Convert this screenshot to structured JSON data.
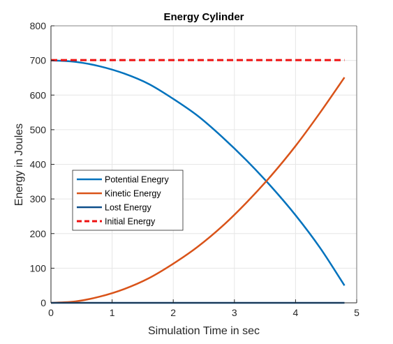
{
  "chart_data": {
    "type": "line",
    "title": "Energy Cylinder",
    "xlabel": "Simulation Time in sec",
    "ylabel": "Energy in Joules",
    "xlim": [
      0,
      5
    ],
    "ylim": [
      0,
      800
    ],
    "xticks": [
      0,
      1,
      2,
      3,
      4,
      5
    ],
    "yticks": [
      0,
      100,
      200,
      300,
      400,
      500,
      600,
      700,
      800
    ],
    "grid": true,
    "legend": "center-left",
    "series": [
      {
        "name": "Potential Enegry",
        "color": "#0072BD",
        "style": "solid",
        "x": [
          0,
          0.4,
          0.8,
          1.2,
          1.6,
          2.0,
          2.4,
          2.8,
          3.2,
          3.6,
          4.0,
          4.4,
          4.8
        ],
        "y": [
          700,
          696,
          683,
          662,
          632,
          589,
          540,
          479,
          411,
          336,
          253,
          159,
          50
        ]
      },
      {
        "name": "Kinetic Energy",
        "color": "#D95319",
        "style": "solid",
        "x": [
          0,
          0.4,
          0.8,
          1.2,
          1.6,
          2.0,
          2.4,
          2.8,
          3.2,
          3.6,
          4.0,
          4.4,
          4.8
        ],
        "y": [
          0,
          4,
          18,
          40,
          71,
          113,
          162,
          221,
          290,
          367,
          453,
          549,
          651
        ]
      },
      {
        "name": "Lost Energy",
        "color": "#0E4F8A",
        "style": "solid",
        "x": [
          0,
          4.8
        ],
        "y": [
          0,
          0
        ]
      },
      {
        "name": "Initial Energy",
        "color": "#EE1111",
        "style": "dashed",
        "x": [
          0,
          4.8
        ],
        "y": [
          701,
          701
        ]
      }
    ]
  }
}
